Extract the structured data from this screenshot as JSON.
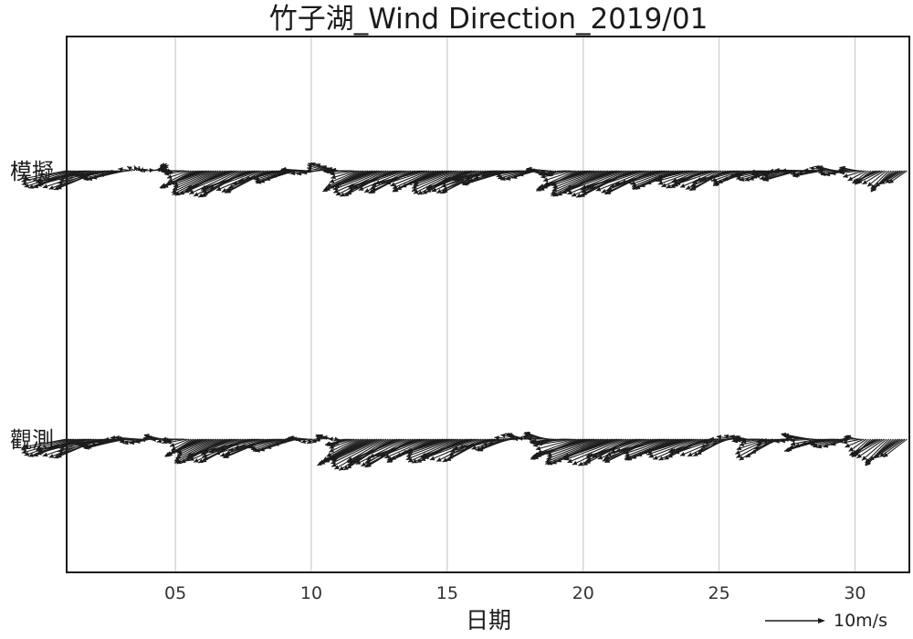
{
  "chart_data": {
    "type": "quiver",
    "title": "竹子湖_Wind Direction_2019/01",
    "xlabel": "日期",
    "ylabel": "",
    "xlim": [
      1,
      32
    ],
    "x_ticks": [
      5,
      10,
      15,
      20,
      25,
      30
    ],
    "x_tick_labels": [
      "05",
      "10",
      "15",
      "20",
      "25",
      "30"
    ],
    "grid": "vertical",
    "rows": [
      "模擬",
      "觀測"
    ],
    "key": {
      "length_ms": 10,
      "label": "10m/s"
    },
    "series": [
      {
        "name": "模擬",
        "day": [
          1,
          2,
          3,
          4,
          5,
          6,
          7,
          8,
          9,
          10,
          11,
          12,
          13,
          14,
          15,
          16,
          17,
          18,
          19,
          20,
          21,
          22,
          23,
          24,
          25,
          26,
          27,
          28,
          29,
          30,
          31
        ],
        "u": [
          -8,
          -9,
          -7,
          3,
          -2,
          -7,
          -8,
          -9,
          -6,
          -4,
          -2,
          -7,
          -9,
          -8,
          -7,
          -8,
          -9,
          -5,
          -2,
          -8,
          -9,
          -10,
          -8,
          -6,
          -7,
          -6,
          -5,
          -7,
          -4,
          -3,
          -4
        ],
        "v": [
          -2,
          -3,
          -1,
          1,
          0,
          -3,
          -4,
          -4,
          -2,
          0,
          1,
          -3,
          -4,
          -3,
          -3,
          -4,
          -2,
          -1,
          0,
          -3,
          -4,
          -4,
          -3,
          -2,
          -3,
          -2,
          -1,
          -1,
          0,
          0,
          -3
        ]
      },
      {
        "name": "觀測",
        "day": [
          1,
          2,
          3,
          4,
          5,
          6,
          7,
          8,
          9,
          10,
          11,
          12,
          13,
          14,
          15,
          16,
          17,
          18,
          19,
          20,
          21,
          22,
          23,
          24,
          25,
          26,
          27,
          28,
          29,
          30,
          31
        ],
        "u": [
          -8,
          -9,
          -7,
          -3,
          -2,
          -6,
          -8,
          -9,
          -7,
          -2,
          -1,
          -8,
          -9,
          -9,
          -8,
          -9,
          -6,
          -3,
          -4,
          -9,
          -10,
          -9,
          -9,
          -8,
          -7,
          -2,
          -6,
          -3,
          -7,
          -2,
          -5
        ],
        "v": [
          -2,
          -3,
          -1,
          0,
          0,
          -3,
          -4,
          -3,
          -2,
          0,
          0,
          -4,
          -5,
          -4,
          -3,
          -4,
          -2,
          1,
          0,
          -3,
          -4,
          -4,
          -3,
          -3,
          -3,
          1,
          -3,
          1,
          -2,
          0,
          -4
        ]
      }
    ]
  }
}
